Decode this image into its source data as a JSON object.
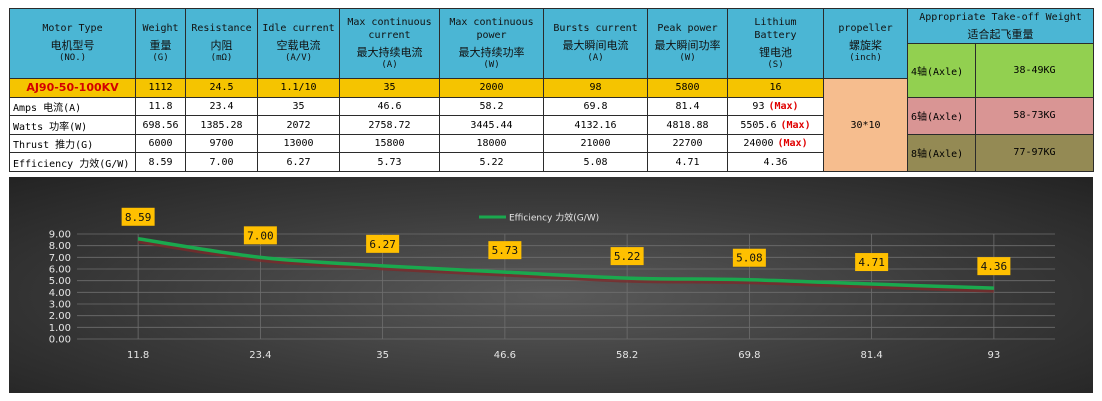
{
  "table": {
    "columns": [
      {
        "en": "Motor Type",
        "zh": "电机型号",
        "unit": "(NO.)"
      },
      {
        "en": "Weight",
        "zh": "重量",
        "unit": "(G)"
      },
      {
        "en": "Resistance",
        "zh": "内阻",
        "unit": "(mΩ)"
      },
      {
        "en": "Idle current",
        "zh": "空载电流",
        "unit": "(A/V)"
      },
      {
        "en": "Max continuous current",
        "zh": "最大持续电流",
        "unit": "(A)"
      },
      {
        "en": "Max continuous power",
        "zh": "最大持续功率",
        "unit": "(W)"
      },
      {
        "en": "Bursts current",
        "zh": "最大瞬间电流",
        "unit": "(A)"
      },
      {
        "en": "Peak power",
        "zh": "最大瞬间功率",
        "unit": "(W)"
      },
      {
        "en": "Lithium Battery",
        "zh": "锂电池",
        "unit": "(S)"
      },
      {
        "en": "propeller",
        "zh": "螺旋桨",
        "unit": "(inch)"
      },
      {
        "en": "Appropriate Take-off Weight",
        "zh": "适合起飞重量",
        "unit": ""
      }
    ],
    "model_row": [
      "AJ90-50-100KV",
      "1112",
      "24.5",
      "1.1/10",
      "35",
      "2000",
      "98",
      "5800",
      "16"
    ],
    "data_rows": [
      {
        "label_en": "Amps",
        "label_zh": "电流",
        "label_unit": "(A)",
        "values": [
          "11.8",
          "23.4",
          "35",
          "46.6",
          "58.2",
          "69.8",
          "81.4",
          "93"
        ],
        "max": true
      },
      {
        "label_en": "Watts",
        "label_zh": "功率",
        "label_unit": "(W)",
        "values": [
          "698.56",
          "1385.28",
          "2072",
          "2758.72",
          "3445.44",
          "4132.16",
          "4818.88",
          "5505.6"
        ],
        "max": true
      },
      {
        "label_en": "Thrust",
        "label_zh": "推力",
        "label_unit": "(G)",
        "values": [
          "6000",
          "9700",
          "13000",
          "15800",
          "18000",
          "21000",
          "22700",
          "24000"
        ],
        "max": true
      },
      {
        "label_en": "Efficiency",
        "label_zh": "力效",
        "label_unit": "(G/W)",
        "values": [
          "8.59",
          "7.00",
          "6.27",
          "5.73",
          "5.22",
          "5.08",
          "4.71",
          "4.36"
        ],
        "max": false
      }
    ],
    "max_label": "(Max)",
    "propeller": "30*10",
    "takeoff": [
      {
        "axle": "4轴(Axle)",
        "weight": "38-49KG"
      },
      {
        "axle": "6轴(Axle)",
        "weight": "58-73KG"
      },
      {
        "axle": "8轴(Axle)",
        "weight": "77-97KG"
      }
    ],
    "takeoff_colors": [
      "#92d050",
      "#d99594",
      "#948a54"
    ]
  },
  "chart_data": {
    "type": "line",
    "categories": [
      "11.8",
      "23.4",
      "35",
      "46.6",
      "58.2",
      "69.8",
      "81.4",
      "93"
    ],
    "series": [
      {
        "name": "Efficiency 力效(G/W)",
        "values": [
          8.59,
          7.0,
          6.27,
          5.73,
          5.22,
          5.08,
          4.71,
          4.36
        ],
        "color": "#1aa84e"
      }
    ],
    "data_labels": [
      "8.59",
      "7.00",
      "6.27",
      "5.73",
      "5.22",
      "5.08",
      "4.71",
      "4.36"
    ],
    "yticks": [
      "0.00",
      "1.00",
      "2.00",
      "3.00",
      "4.00",
      "5.00",
      "6.00",
      "7.00",
      "8.00",
      "9.00"
    ],
    "ylim": [
      0,
      9
    ],
    "grid": true,
    "legend_position": "top",
    "label_background": "#ffc000"
  }
}
